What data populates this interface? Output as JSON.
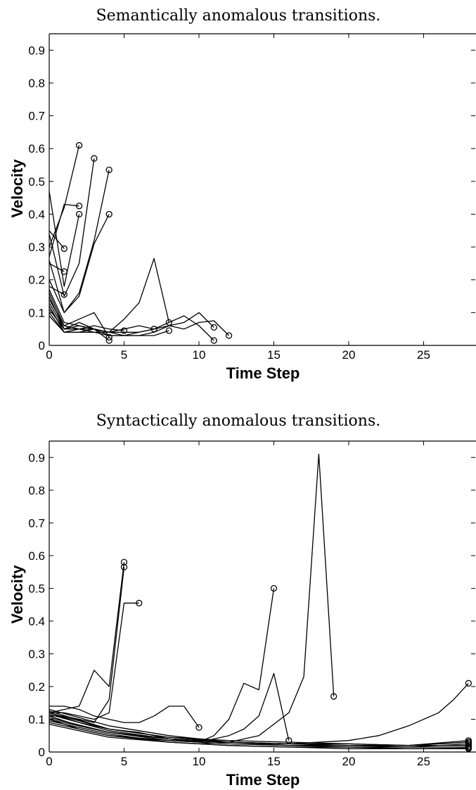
{
  "chart_data": [
    {
      "type": "line",
      "title": "Semantically anomalous transitions.",
      "xlabel": "Time Step",
      "ylabel": "Velocity",
      "xlim": [
        0,
        28.5
      ],
      "ylim": [
        0,
        0.95
      ],
      "xticks": [
        0,
        5,
        10,
        15,
        20,
        25
      ],
      "yticks": [
        0,
        0.1,
        0.2,
        0.3,
        0.4,
        0.5,
        0.6,
        0.7,
        0.8,
        0.9
      ],
      "xtick_labels": [
        "0",
        "5",
        "10",
        "15",
        "20",
        "25"
      ],
      "ytick_labels": [
        "0",
        "0.1",
        "0.2",
        "0.3",
        "0.4",
        "0.5",
        "0.6",
        "0.7",
        "0.8",
        "0.9"
      ],
      "end_marker": "open-circle",
      "series": [
        {
          "x": [
            0,
            1,
            2
          ],
          "y": [
            0.3,
            0.42,
            0.61
          ]
        },
        {
          "x": [
            0,
            1,
            2
          ],
          "y": [
            0.27,
            0.43,
            0.425
          ]
        },
        {
          "x": [
            0,
            1,
            2
          ],
          "y": [
            0.47,
            0.18,
            0.4
          ]
        },
        {
          "x": [
            0,
            1,
            2,
            3
          ],
          "y": [
            0.34,
            0.15,
            0.25,
            0.57
          ]
        },
        {
          "x": [
            0,
            1,
            2,
            3,
            4
          ],
          "y": [
            0.26,
            0.1,
            0.16,
            0.32,
            0.535
          ]
        },
        {
          "x": [
            0,
            1,
            2,
            3,
            4
          ],
          "y": [
            0.2,
            0.1,
            0.15,
            0.31,
            0.4
          ]
        },
        {
          "x": [
            0,
            1
          ],
          "y": [
            0.35,
            0.295
          ]
        },
        {
          "x": [
            0,
            1
          ],
          "y": [
            0.25,
            0.225
          ]
        },
        {
          "x": [
            0,
            1
          ],
          "y": [
            0.18,
            0.155
          ]
        },
        {
          "x": [
            0,
            1,
            2,
            3,
            4
          ],
          "y": [
            0.16,
            0.06,
            0.08,
            0.1,
            0.025
          ]
        },
        {
          "x": [
            0,
            1,
            2,
            3,
            4
          ],
          "y": [
            0.13,
            0.05,
            0.07,
            0.05,
            0.015
          ]
        },
        {
          "x": [
            0,
            1,
            2,
            3,
            4,
            5
          ],
          "y": [
            0.14,
            0.06,
            0.05,
            0.06,
            0.05,
            0.045
          ]
        },
        {
          "x": [
            0,
            1,
            2,
            3,
            4,
            5,
            6,
            7,
            8
          ],
          "y": [
            0.15,
            0.05,
            0.05,
            0.04,
            0.04,
            0.08,
            0.13,
            0.265,
            0.07
          ]
        },
        {
          "x": [
            0,
            1,
            2,
            3,
            4,
            5,
            6,
            7
          ],
          "y": [
            0.11,
            0.05,
            0.06,
            0.05,
            0.04,
            0.05,
            0.06,
            0.05
          ]
        },
        {
          "x": [
            0,
            1,
            2,
            3,
            4,
            5,
            6,
            7,
            8,
            9,
            10,
            11
          ],
          "y": [
            0.12,
            0.04,
            0.04,
            0.04,
            0.03,
            0.03,
            0.03,
            0.04,
            0.06,
            0.07,
            0.1,
            0.055
          ]
        },
        {
          "x": [
            0,
            1,
            2,
            3,
            4,
            5,
            6,
            7,
            8,
            9,
            10,
            11
          ],
          "y": [
            0.1,
            0.04,
            0.04,
            0.05,
            0.04,
            0.04,
            0.04,
            0.05,
            0.07,
            0.09,
            0.06,
            0.015
          ]
        },
        {
          "x": [
            0,
            1,
            2,
            3,
            4,
            5,
            6,
            7,
            8,
            9,
            10,
            11,
            12
          ],
          "y": [
            0.17,
            0.07,
            0.06,
            0.05,
            0.03,
            0.03,
            0.04,
            0.05,
            0.06,
            0.05,
            0.07,
            0.075,
            0.03
          ]
        },
        {
          "x": [
            0,
            1,
            2,
            3,
            4,
            5,
            6,
            7,
            8
          ],
          "y": [
            0.09,
            0.04,
            0.05,
            0.05,
            0.04,
            0.03,
            0.03,
            0.03,
            0.045
          ]
        }
      ]
    },
    {
      "type": "line",
      "title": "Syntactically anomalous transitions.",
      "xlabel": "Time Step",
      "ylabel": "Velocity",
      "xlim": [
        0,
        28.5
      ],
      "ylim": [
        0,
        0.95
      ],
      "xticks": [
        0,
        5,
        10,
        15,
        20,
        25
      ],
      "yticks": [
        0,
        0.1,
        0.2,
        0.3,
        0.4,
        0.5,
        0.6,
        0.7,
        0.8,
        0.9
      ],
      "xtick_labels": [
        "0",
        "5",
        "10",
        "15",
        "20",
        "25"
      ],
      "ytick_labels": [
        "0",
        "0.1",
        "0.2",
        "0.3",
        "0.4",
        "0.5",
        "0.6",
        "0.7",
        "0.8",
        "0.9"
      ],
      "end_marker": "open-circle",
      "series": [
        {
          "x": [
            0,
            1,
            2,
            3,
            4,
            5
          ],
          "y": [
            0.12,
            0.13,
            0.14,
            0.25,
            0.2,
            0.58
          ]
        },
        {
          "x": [
            0,
            1,
            2,
            3,
            4,
            5
          ],
          "y": [
            0.11,
            0.11,
            0.1,
            0.09,
            0.16,
            0.565
          ]
        },
        {
          "x": [
            0,
            1,
            2,
            3,
            4,
            5,
            6
          ],
          "y": [
            0.12,
            0.12,
            0.11,
            0.1,
            0.12,
            0.455,
            0.455
          ]
        },
        {
          "x": [
            0,
            1,
            2,
            3,
            4,
            5,
            6,
            7,
            8,
            9,
            10
          ],
          "y": [
            0.14,
            0.14,
            0.13,
            0.11,
            0.1,
            0.09,
            0.09,
            0.11,
            0.14,
            0.14,
            0.075
          ]
        },
        {
          "x": [
            0,
            2,
            4,
            6,
            8,
            10,
            11,
            12,
            13,
            14,
            15
          ],
          "y": [
            0.12,
            0.09,
            0.07,
            0.06,
            0.04,
            0.03,
            0.05,
            0.1,
            0.21,
            0.19,
            0.5
          ]
        },
        {
          "x": [
            0,
            2,
            4,
            6,
            8,
            10,
            12,
            13,
            14,
            15,
            16
          ],
          "y": [
            0.11,
            0.08,
            0.06,
            0.05,
            0.04,
            0.03,
            0.05,
            0.07,
            0.11,
            0.24,
            0.035
          ]
        },
        {
          "x": [
            0,
            2,
            4,
            6,
            8,
            10,
            12,
            14,
            16,
            17,
            18,
            19
          ],
          "y": [
            0.1,
            0.07,
            0.05,
            0.04,
            0.03,
            0.025,
            0.03,
            0.05,
            0.12,
            0.23,
            0.91,
            0.17
          ]
        },
        {
          "x": [
            0,
            4,
            8,
            12,
            16,
            20,
            22,
            24,
            26,
            27,
            28
          ],
          "y": [
            0.13,
            0.08,
            0.05,
            0.03,
            0.025,
            0.035,
            0.05,
            0.08,
            0.12,
            0.16,
            0.21
          ]
        },
        {
          "x": [
            0,
            4,
            8,
            12,
            16,
            20,
            24,
            28
          ],
          "y": [
            0.12,
            0.07,
            0.045,
            0.035,
            0.03,
            0.025,
            0.02,
            0.035
          ]
        },
        {
          "x": [
            0,
            4,
            8,
            12,
            16,
            20,
            24,
            28
          ],
          "y": [
            0.1,
            0.06,
            0.04,
            0.03,
            0.025,
            0.02,
            0.02,
            0.03
          ]
        },
        {
          "x": [
            0,
            4,
            8,
            12,
            16,
            20,
            24,
            28
          ],
          "y": [
            0.09,
            0.05,
            0.035,
            0.03,
            0.02,
            0.02,
            0.015,
            0.025
          ]
        },
        {
          "x": [
            0,
            4,
            8,
            12,
            16,
            20,
            24,
            28
          ],
          "y": [
            0.115,
            0.065,
            0.04,
            0.03,
            0.025,
            0.02,
            0.02,
            0.02
          ]
        },
        {
          "x": [
            0,
            4,
            8,
            12,
            16,
            20,
            24,
            28
          ],
          "y": [
            0.105,
            0.06,
            0.035,
            0.025,
            0.02,
            0.015,
            0.015,
            0.015
          ]
        },
        {
          "x": [
            0,
            4,
            8,
            12,
            16,
            20,
            24,
            28
          ],
          "y": [
            0.095,
            0.055,
            0.03,
            0.02,
            0.015,
            0.015,
            0.01,
            0.01
          ]
        },
        {
          "x": [
            0,
            4,
            8,
            12,
            16,
            20,
            24,
            28
          ],
          "y": [
            0.125,
            0.07,
            0.045,
            0.03,
            0.025,
            0.025,
            0.02,
            0.03
          ]
        },
        {
          "x": [
            0,
            4,
            8,
            12,
            16,
            20,
            24,
            28
          ],
          "y": [
            0.085,
            0.045,
            0.03,
            0.02,
            0.015,
            0.01,
            0.01,
            0.012
          ]
        }
      ]
    }
  ]
}
